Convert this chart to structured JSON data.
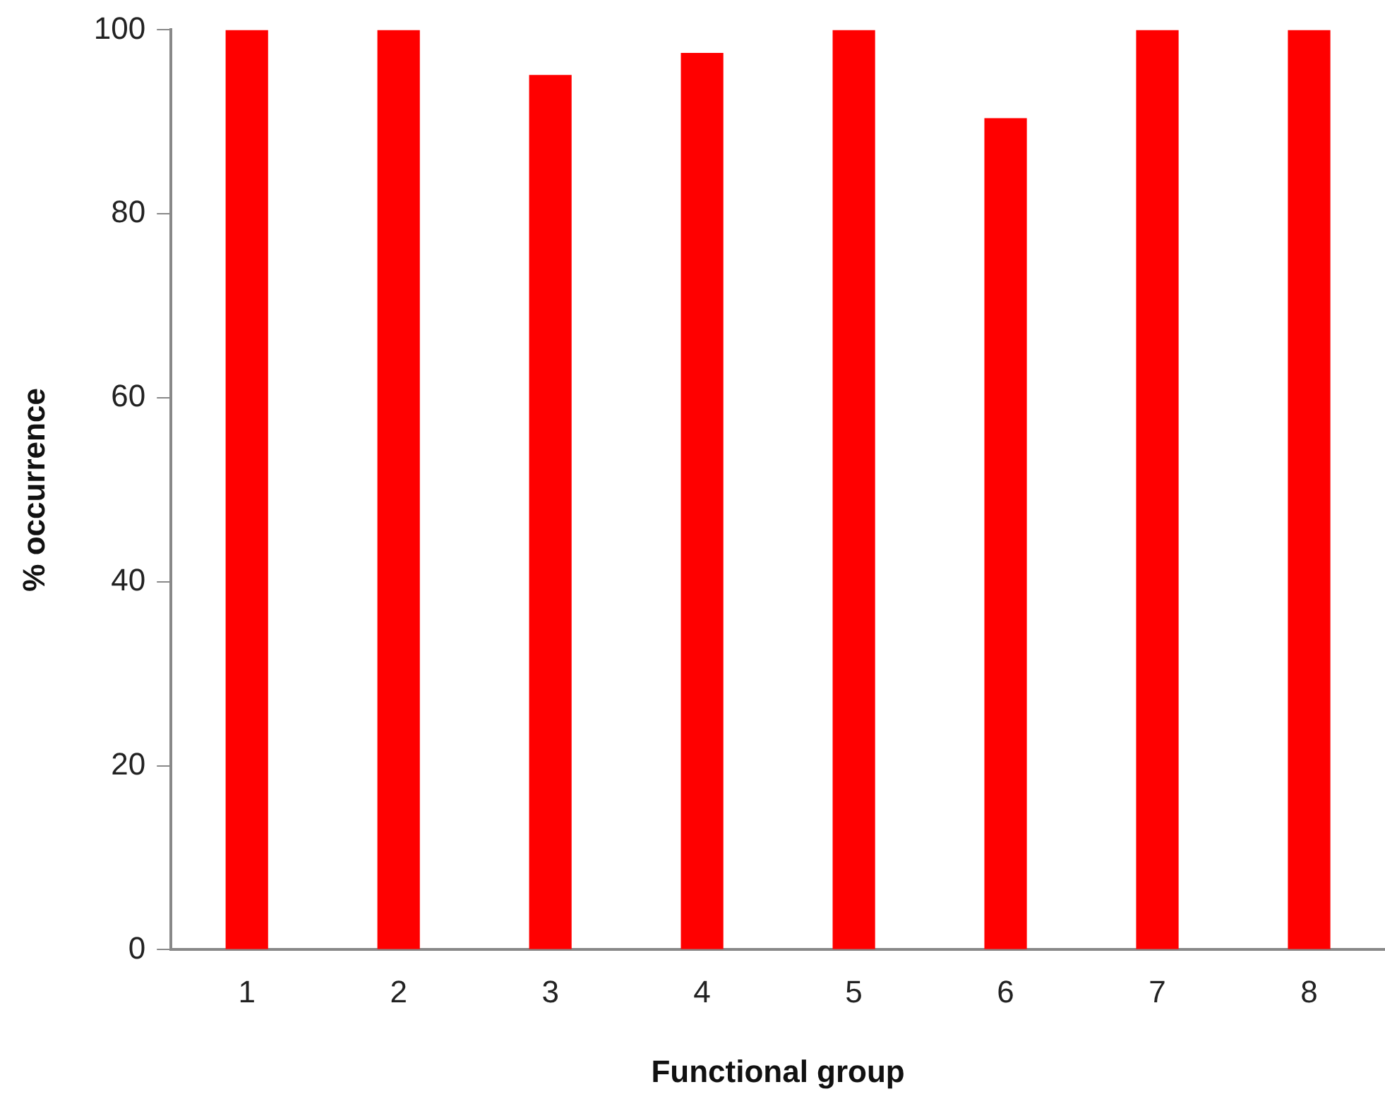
{
  "chart_data": {
    "type": "bar",
    "xlabel": "Functional group",
    "ylabel": "% occurrence",
    "categories": [
      "1",
      "2",
      "3",
      "4",
      "5",
      "6",
      "7",
      "8"
    ],
    "values": [
      100,
      100,
      95.1,
      97.5,
      100,
      90.4,
      100,
      100
    ],
    "color": "#ff0000",
    "ylim": [
      0,
      100
    ],
    "yticks": [
      0,
      20,
      40,
      60,
      80,
      100
    ],
    "grid": false,
    "legend": false
  }
}
